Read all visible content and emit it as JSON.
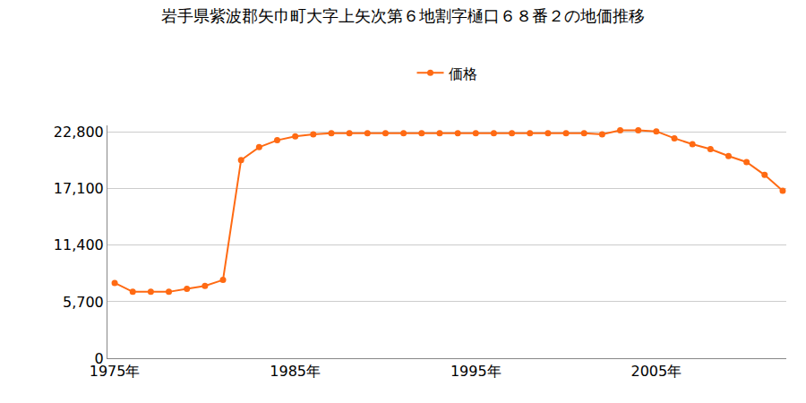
{
  "chart_data": {
    "type": "line",
    "title": "岩手県紫波郡矢巾町大字上矢次第６地割字樋口６８番２の地価推移",
    "x": [
      1975,
      1976,
      1977,
      1978,
      1979,
      1980,
      1981,
      1982,
      1983,
      1984,
      1985,
      1986,
      1987,
      1988,
      1989,
      1990,
      1991,
      1992,
      1993,
      1994,
      1995,
      1996,
      1997,
      1998,
      1999,
      2000,
      2001,
      2002,
      2003,
      2004,
      2005,
      2006,
      2007,
      2008,
      2009,
      2010,
      2011,
      2012
    ],
    "series": [
      {
        "name": "価格",
        "color": "#ff6a13",
        "marker": "circle",
        "line_style": "solid",
        "values": [
          7600,
          6700,
          6700,
          6700,
          7000,
          7300,
          7900,
          20000,
          21300,
          22000,
          22400,
          22600,
          22700,
          22700,
          22700,
          22700,
          22700,
          22700,
          22700,
          22700,
          22700,
          22700,
          22700,
          22700,
          22700,
          22700,
          22700,
          22600,
          23000,
          23000,
          22900,
          22200,
          21600,
          21100,
          20400,
          19800,
          18500,
          16900
        ]
      }
    ],
    "xlim": [
      1974.6,
      2012.2
    ],
    "xticks": [
      {
        "value": 1975,
        "label": "1975年"
      },
      {
        "value": 1985,
        "label": "1985年"
      },
      {
        "value": 1995,
        "label": "1995年"
      },
      {
        "value": 2005,
        "label": "2005年"
      }
    ],
    "ylim": [
      0,
      23500
    ],
    "yticks": [
      0,
      {
        "value": 5700,
        "label": "5,700"
      },
      {
        "value": 11400,
        "label": "11,400"
      },
      {
        "value": 17100,
        "label": "17,100"
      },
      {
        "value": 22800,
        "label": "22,800"
      }
    ],
    "grid": true,
    "legend": "top"
  }
}
